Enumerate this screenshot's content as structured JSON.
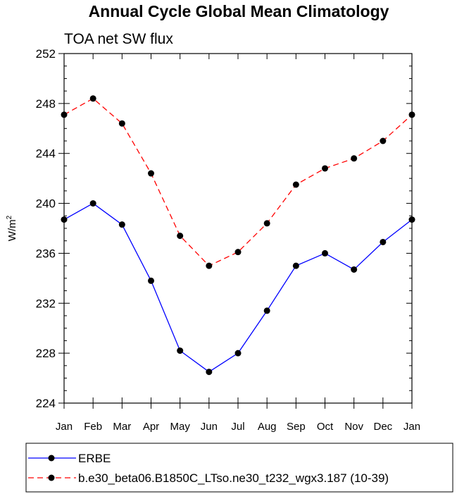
{
  "chart_data": {
    "type": "line",
    "title": "Annual Cycle Global Mean Climatology",
    "subtitle": "TOA net SW flux",
    "ylabel": "W/m",
    "ylabel_superscript": "2",
    "xlabel": "",
    "ylim": [
      224,
      252
    ],
    "yticks": [
      224,
      228,
      232,
      236,
      240,
      244,
      248,
      252
    ],
    "yminor_step": 1,
    "categories": [
      "Jan",
      "Feb",
      "Mar",
      "Apr",
      "May",
      "Jun",
      "Jul",
      "Aug",
      "Sep",
      "Oct",
      "Nov",
      "Dec",
      "Jan"
    ],
    "series": [
      {
        "name": "ERBE",
        "color": "#0000ff",
        "dash": "solid",
        "values": [
          238.7,
          240.0,
          238.3,
          233.8,
          228.2,
          226.5,
          228.0,
          231.4,
          235.0,
          236.0,
          234.7,
          236.9,
          238.7
        ]
      },
      {
        "name": "b.e30_beta06.B1850C_LTso.ne30_t232_wgx3.187 (10-39)",
        "color": "#ff0000",
        "dash": "dashed",
        "values": [
          247.1,
          248.4,
          246.4,
          242.4,
          237.4,
          235.0,
          236.1,
          238.4,
          241.5,
          242.8,
          243.6,
          245.0,
          247.1
        ]
      }
    ],
    "marker_color": "#000000",
    "legend_position": "bottom"
  }
}
